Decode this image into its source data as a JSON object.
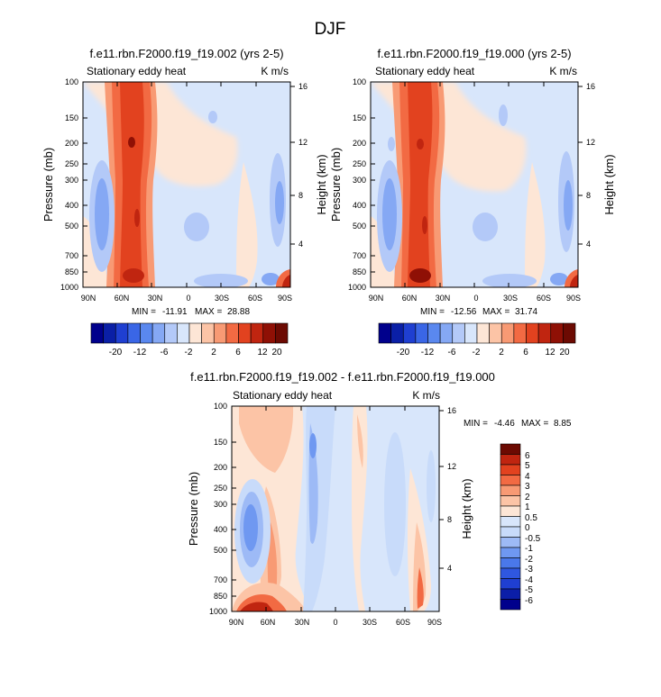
{
  "figure_title": "DJF",
  "colors": {
    "top_levels": [
      -20,
      -16,
      -12,
      -8,
      -6,
      -4,
      -2,
      0,
      2,
      4,
      6,
      8,
      12,
      16,
      20
    ],
    "top_palette": [
      "#00008c",
      "#0a1fa6",
      "#1f3fd1",
      "#3a66e6",
      "#5a88ef",
      "#85a8f4",
      "#b3c9f8",
      "#d8e6fb",
      "#fde6d6",
      "#fcc4a6",
      "#f89a74",
      "#f26a43",
      "#e2421f",
      "#c02510",
      "#8f1005",
      "#6c0a02"
    ],
    "diff_levels": [
      -6,
      -5,
      -4,
      -3,
      -2,
      -1,
      -0.5,
      0,
      0.5,
      1,
      2,
      3,
      4,
      5,
      6
    ],
    "diff_palette": [
      "#00008c",
      "#0b1ea8",
      "#1f3fd1",
      "#2f57e0",
      "#4a78ea",
      "#6f98f1",
      "#9dbaf6",
      "#c8dbfa",
      "#d8e6fb",
      "#fde6d6",
      "#fcc4a6",
      "#f89a74",
      "#f26a43",
      "#e2421f",
      "#c02510",
      "#6c0a02"
    ]
  },
  "chart_data": [
    {
      "type": "heatmap",
      "title": "f.e11.rbn.F2000.f19_f19.002 (yrs 2-5)",
      "left_label": "Stationary eddy heat",
      "units": "K m/s",
      "xlabel": "",
      "ylabel": "Pressure (mb)",
      "y2label": "Height (km)",
      "x_ticks": [
        "90N",
        "60N",
        "30N",
        "0",
        "30S",
        "60S",
        "90S"
      ],
      "y_ticks": [
        100,
        150,
        200,
        250,
        300,
        400,
        500,
        700,
        850,
        1000
      ],
      "y2_ticks": [
        16,
        12,
        8,
        4
      ],
      "xlim": [
        90,
        -90
      ],
      "ylim": [
        1000,
        100
      ],
      "stats": {
        "min_label": "MIN =",
        "min": "-11.91",
        "max_label": "MAX =",
        "max": "28.88"
      },
      "colorbar_labels": [
        "-20",
        "-12",
        "-6",
        "-2",
        "2",
        "6",
        "12",
        "20"
      ],
      "features": [
        {
          "kind": "ridge",
          "label": "mid-latitude NH maximum",
          "lat": [
            58,
            52
          ],
          "p": [
            100,
            1000
          ],
          "peak": 22
        },
        {
          "kind": "blob",
          "label": "NH high-latitude minimum",
          "lat": 78,
          "p": 400,
          "value": -7
        },
        {
          "kind": "blob",
          "label": "SH high-latitude minimum",
          "lat": -78,
          "p": 420,
          "value": -5
        },
        {
          "kind": "blob",
          "label": "SH surface maximum",
          "lat": -82,
          "p": 950,
          "value": 12
        }
      ]
    },
    {
      "type": "heatmap",
      "title": "f.e11.rbn.F2000.f19_f19.000 (yrs 2-5)",
      "left_label": "Stationary eddy heat",
      "units": "K m/s",
      "xlabel": "",
      "ylabel": "Pressure (mb)",
      "y2label": "Height (km)",
      "x_ticks": [
        "90N",
        "60N",
        "30N",
        "0",
        "30S",
        "60S",
        "90S"
      ],
      "y_ticks": [
        100,
        150,
        200,
        250,
        300,
        400,
        500,
        700,
        850,
        1000
      ],
      "y2_ticks": [
        16,
        12,
        8,
        4
      ],
      "xlim": [
        90,
        -90
      ],
      "ylim": [
        1000,
        100
      ],
      "stats": {
        "min_label": "MIN =",
        "min": "-12.56",
        "max_label": "MAX =",
        "max": "31.74"
      },
      "colorbar_labels": [
        "-20",
        "-12",
        "-6",
        "-2",
        "2",
        "6",
        "12",
        "20"
      ],
      "features": [
        {
          "kind": "ridge",
          "label": "mid-latitude NH maximum",
          "lat": [
            58,
            50
          ],
          "p": [
            100,
            1000
          ],
          "peak": 24
        },
        {
          "kind": "blob",
          "label": "NH high-latitude minimum",
          "lat": 78,
          "p": 400,
          "value": -6
        },
        {
          "kind": "blob",
          "label": "SH high-latitude minimum",
          "lat": -78,
          "p": 400,
          "value": -6
        },
        {
          "kind": "blob",
          "label": "SH surface maximum",
          "lat": -82,
          "p": 950,
          "value": 14
        }
      ]
    },
    {
      "type": "heatmap",
      "title": "f.e11.rbn.F2000.f19_f19.002 - f.e11.rbn.F2000.f19_f19.000",
      "left_label": "Stationary eddy heat",
      "units": "K m/s",
      "xlabel": "",
      "ylabel": "Pressure (mb)",
      "y2label": "Height (km)",
      "x_ticks": [
        "90N",
        "60N",
        "30N",
        "0",
        "30S",
        "60S",
        "90S"
      ],
      "y_ticks": [
        100,
        150,
        200,
        250,
        300,
        400,
        500,
        700,
        850,
        1000
      ],
      "y2_ticks": [
        16,
        12,
        8,
        4
      ],
      "xlim": [
        90,
        -90
      ],
      "ylim": [
        1000,
        100
      ],
      "stats": {
        "min_label": "MIN =",
        "min": "-4.46",
        "max_label": "MAX =",
        "max": "8.85"
      },
      "colorbar_labels": [
        "6",
        "5",
        "4",
        "3",
        "2",
        "1",
        "0.5",
        "0",
        "-0.5",
        "-1",
        "-2",
        "-3",
        "-4",
        "-5",
        "-6"
      ],
      "features": [
        {
          "kind": "blob",
          "label": "NH polar minimum",
          "lat": 75,
          "p": 380,
          "value": -3.5
        },
        {
          "kind": "blob",
          "label": "NH surface maximum",
          "lat": 72,
          "p": 990,
          "value": 6
        },
        {
          "kind": "ridge",
          "label": "upper NH positive band",
          "lat": [
            72,
            62
          ],
          "p": [
            100,
            700
          ],
          "peak": 1.5
        },
        {
          "kind": "ridge",
          "label": "subtropical negative band",
          "lat": [
            42,
            38
          ],
          "p": [
            100,
            800
          ],
          "peak": -1.5
        },
        {
          "kind": "ridge",
          "label": "SH subtropical positive band",
          "lat": [
            -22,
            -25
          ],
          "p": [
            100,
            700
          ],
          "peak": 1.5
        },
        {
          "kind": "blob",
          "label": "SH high-latitude maximum",
          "lat": -75,
          "p": 700,
          "value": 2.5
        }
      ]
    }
  ]
}
